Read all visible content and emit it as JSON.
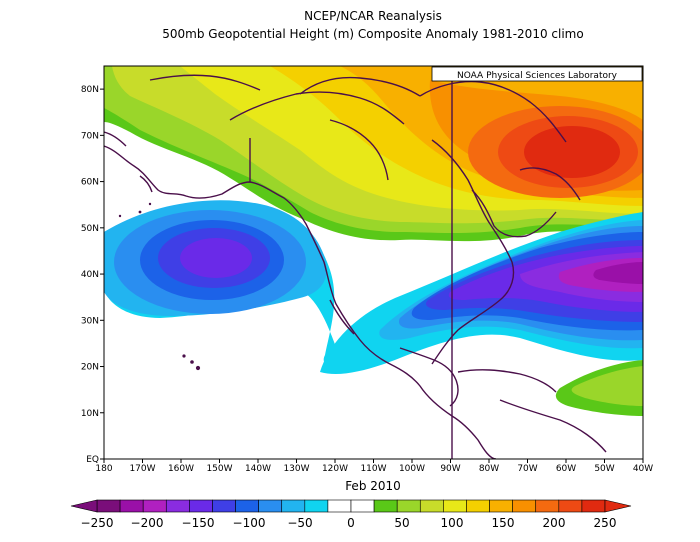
{
  "title": "NCEP/NCAR Reanalysis",
  "subtitle": "500mb Geopotential Height (m) Composite Anomaly 1981-2010 climo",
  "credit": "NOAA Physical Sciences Laboratory",
  "period_label": "Feb 2010",
  "lat_ticks": [
    "EQ",
    "10N",
    "20N",
    "30N",
    "40N",
    "50N",
    "60N",
    "70N",
    "80N"
  ],
  "lon_ticks": [
    "180",
    "170W",
    "160W",
    "150W",
    "140W",
    "130W",
    "120W",
    "110W",
    "100W",
    "90W",
    "80W",
    "70W",
    "60W",
    "50W",
    "40W"
  ],
  "colorbar": {
    "labels": [
      "-250",
      "-200",
      "-150",
      "-100",
      "-50",
      "0",
      "50",
      "100",
      "150",
      "200",
      "250"
    ],
    "colors": [
      "#7a0e7a",
      "#9a10a8",
      "#b020c0",
      "#8a2ce0",
      "#6a2ae8",
      "#3f3fe6",
      "#1c62e8",
      "#2a8ef0",
      "#22b4f0",
      "#10d4f0",
      "#ffffff",
      "#ffffff",
      "#5ac818",
      "#9ad62a",
      "#c8dc2a",
      "#e8e818",
      "#f4d000",
      "#f8b000",
      "#f89000",
      "#f46a10",
      "#ee4a14",
      "#e02a10"
    ]
  },
  "map_data": {
    "extent": {
      "lon_min": -180,
      "lon_max": -40,
      "lat_min": 0,
      "lat_max": 85
    },
    "anomaly_features": [
      {
        "kind": "positive",
        "max_m": 200,
        "center": "eastern Canada / Labrador"
      },
      {
        "kind": "negative",
        "min_m": -150,
        "center": "Gulf of Alaska / North Pacific"
      },
      {
        "kind": "negative",
        "min_m": -200,
        "center": "western North Atlantic"
      },
      {
        "kind": "positive",
        "max_m": 50,
        "center": "central tropical Atlantic"
      }
    ]
  }
}
